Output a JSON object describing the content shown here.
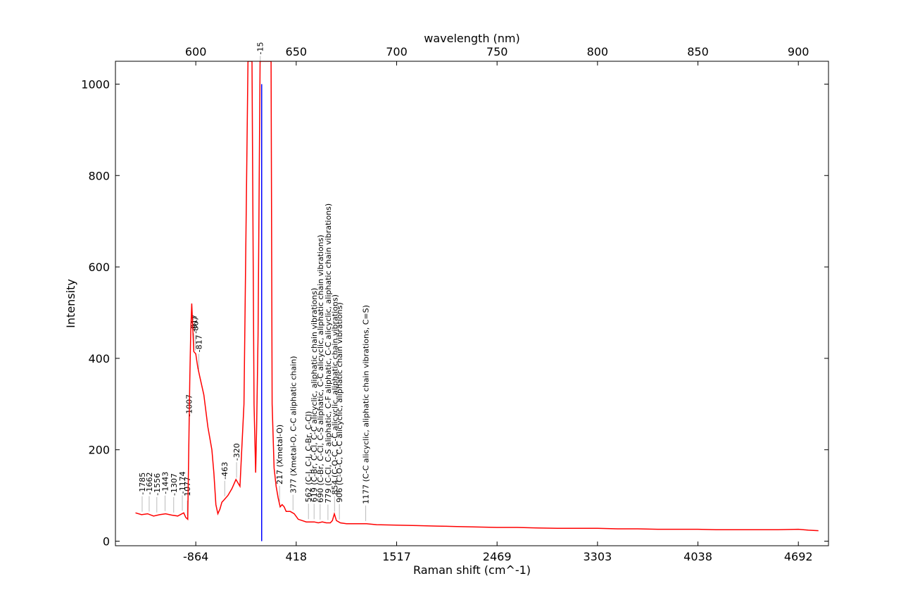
{
  "chart_data": {
    "type": "line",
    "title": "",
    "xlabel": "Raman shift (cm^-1)",
    "ylabel": "Intensity",
    "x2label": "wavelength (nm)",
    "xlim": [
      560,
      915
    ],
    "ylim": [
      -10,
      1050
    ],
    "x_ticks": [
      {
        "wavelength": 600,
        "label": "-864"
      },
      {
        "wavelength": 650,
        "label": "418"
      },
      {
        "wavelength": 700,
        "label": "1517"
      },
      {
        "wavelength": 750,
        "label": "2469"
      },
      {
        "wavelength": 800,
        "label": "3303"
      },
      {
        "wavelength": 850,
        "label": "4038"
      },
      {
        "wavelength": 900,
        "label": "4692"
      }
    ],
    "x2_ticks": [
      600,
      650,
      700,
      750,
      800,
      850,
      900
    ],
    "y_ticks": [
      0,
      200,
      400,
      600,
      800,
      1000
    ],
    "grid": false,
    "series": [
      {
        "color": "#ff0000",
        "x": [
          570,
          573,
          576,
          579,
          582,
          585,
          588,
          591,
          594,
          595,
          596,
          597,
          597.5,
          598,
          599,
          600,
          601,
          602,
          604,
          606,
          608,
          609,
          610,
          611,
          612,
          613,
          614,
          616,
          618,
          620,
          622,
          624,
          626,
          628,
          629,
          629.8,
          630.3,
          631,
          632,
          634,
          636,
          637.5,
          638,
          639,
          640,
          641,
          642,
          643,
          644,
          645,
          647,
          649,
          651,
          653,
          655,
          657,
          659,
          661,
          663,
          665,
          667,
          668,
          669,
          670,
          672,
          675,
          680,
          685,
          690,
          700,
          710,
          720,
          730,
          740,
          750,
          760,
          770,
          780,
          790,
          800,
          810,
          820,
          830,
          840,
          850,
          860,
          870,
          880,
          890,
          900,
          905,
          910
        ],
        "y": [
          62,
          58,
          60,
          55,
          58,
          60,
          57,
          55,
          62,
          52,
          48,
          350,
          460,
          520,
          415,
          410,
          380,
          360,
          320,
          250,
          200,
          150,
          80,
          60,
          70,
          85,
          90,
          100,
          115,
          135,
          120,
          300,
          1050,
          1050,
          300,
          150,
          250,
          450,
          1050,
          1050,
          1050,
          1050,
          300,
          160,
          120,
          95,
          75,
          80,
          75,
          65,
          65,
          60,
          48,
          45,
          42,
          42,
          42,
          40,
          42,
          40,
          40,
          45,
          60,
          45,
          40,
          38,
          38,
          38,
          36,
          35,
          34,
          33,
          32,
          31,
          30,
          30,
          29,
          28,
          28,
          28,
          27,
          27,
          26,
          26,
          26,
          25,
          25,
          25,
          25,
          26,
          24,
          23
        ]
      }
    ],
    "excitation_line": {
      "wavelength": 632.8,
      "value": 1000,
      "color": "#0000ff"
    },
    "annotations": [
      {
        "wavelength": 573.3,
        "label": "-1785"
      },
      {
        "wavelength": 576.8,
        "label": "-1662"
      },
      {
        "wavelength": 580.6,
        "label": "-1556"
      },
      {
        "wavelength": 584.7,
        "label": "-1443"
      },
      {
        "wavelength": 589.0,
        "label": "-1307"
      },
      {
        "wavelength": 593.3,
        "label": "-1174"
      },
      {
        "wavelength": 595.8,
        "label": "-1077"
      },
      {
        "wavelength": 596.6,
        "label": "-1007"
      },
      {
        "wavelength": 599.0,
        "label": "-917"
      },
      {
        "wavelength": 599.8,
        "label": "-867"
      },
      {
        "wavelength": 601.5,
        "label": "-817"
      },
      {
        "wavelength": 614.4,
        "label": "-463"
      },
      {
        "wavelength": 620.3,
        "label": "-320"
      },
      {
        "wavelength": 632.1,
        "label": "-15"
      },
      {
        "wavelength": 641.7,
        "label": "217 (Xmetal-O)"
      },
      {
        "wavelength": 648.4,
        "label": "377 (Xmetal-O, C-C aliphatic chain)"
      },
      {
        "wavelength": 656.1,
        "label": "562 (C-I, C-I, C-Br, C-Cl)"
      },
      {
        "wavelength": 658.9,
        "label": "619 (C-Br, C-Cl, C-C alicyclic, aliphatic chain vibrations)"
      },
      {
        "wavelength": 661.9,
        "label": "690 (C-Br, C-Cl, C-S aliphatic, C-C alicyclic, aliphatic chain vibrations)"
      },
      {
        "wavelength": 665.8,
        "label": "779 (C-Cl, C-S aliphatic, C-F aliphatic, C-C alicyclic, aliphatic chain vibrations)"
      },
      {
        "wavelength": 669.1,
        "label": "854 (C-O-C, C-C alicyclic, aliphatic chain vibrations)"
      },
      {
        "wavelength": 671.5,
        "label": "906 (C-O-C, C-C alicyclic, aliphatic chain vibrations)"
      },
      {
        "wavelength": 684.6,
        "label": "1177 (C-C alicyclic, aliphatic chain vibrations, C=S)"
      }
    ]
  }
}
